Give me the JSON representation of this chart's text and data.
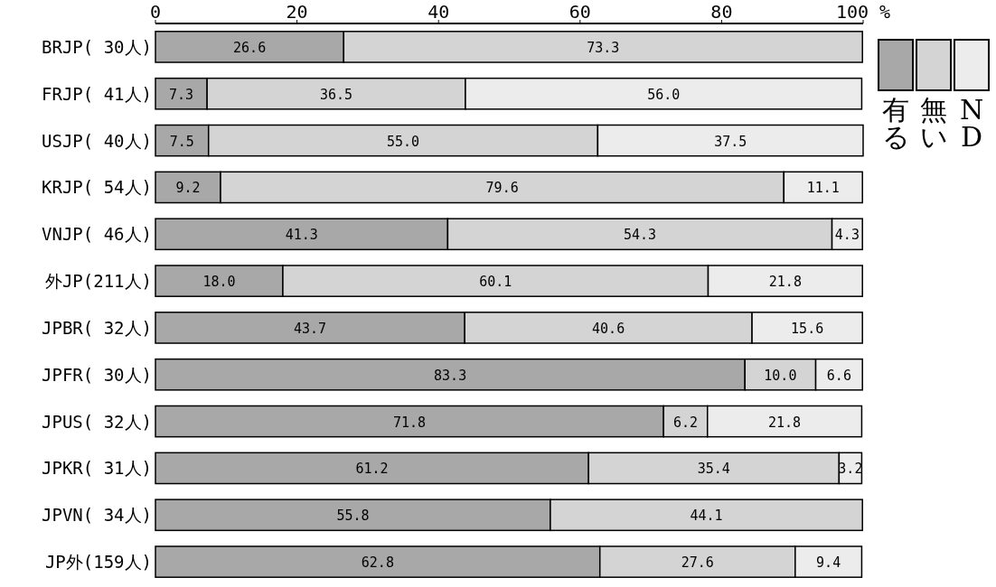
{
  "chart_data": {
    "type": "bar",
    "orientation": "horizontal",
    "stacked": true,
    "categories": [
      "BRJP( 30人)",
      "FRJP( 41人)",
      "USJP( 40人)",
      "KRJP( 54人)",
      "VNJP( 46人)",
      "外JP(211人)",
      "JPBR( 32人)",
      "JPFR( 30人)",
      "JPUS( 32人)",
      "JPKR( 31人)",
      "JPVN( 34人)",
      "JP外(159人)"
    ],
    "series": [
      {
        "name": "有る",
        "color": "#a8a8a8",
        "values": [
          26.6,
          7.3,
          7.5,
          9.2,
          41.3,
          18.0,
          43.7,
          83.3,
          71.8,
          61.2,
          55.8,
          62.8
        ],
        "value_labels": [
          "26.6",
          "7.3",
          "7.5",
          "9.2",
          "41.3",
          "18.0",
          "43.7",
          "83.3",
          "71.8",
          "61.2",
          "55.8",
          "62.8"
        ]
      },
      {
        "name": "無い",
        "color": "#d4d4d4",
        "values": [
          73.3,
          36.5,
          55.0,
          79.6,
          54.3,
          60.1,
          40.6,
          10.0,
          6.2,
          35.4,
          44.1,
          27.6
        ],
        "value_labels": [
          "73.3",
          "36.5",
          "55.0",
          "79.6",
          "54.3",
          "60.1",
          "40.6",
          "10.0",
          "6.2",
          "35.4",
          "44.1",
          "27.6"
        ]
      },
      {
        "name": "ND",
        "color": "#ececec",
        "values": [
          null,
          56.0,
          37.5,
          11.1,
          4.3,
          21.8,
          15.6,
          6.6,
          21.8,
          3.2,
          null,
          9.4
        ],
        "value_labels": [
          null,
          "56.0",
          "37.5",
          "11.1",
          "4.3",
          "21.8",
          "15.6",
          "6.6",
          "21.8",
          "3.2",
          null,
          "9.4"
        ]
      }
    ],
    "xlim": [
      0,
      100
    ],
    "xticks": [
      0,
      20,
      40,
      60,
      80,
      {
        "value": 100,
        "label": "100 %"
      }
    ],
    "grid": false,
    "legend": "right"
  }
}
